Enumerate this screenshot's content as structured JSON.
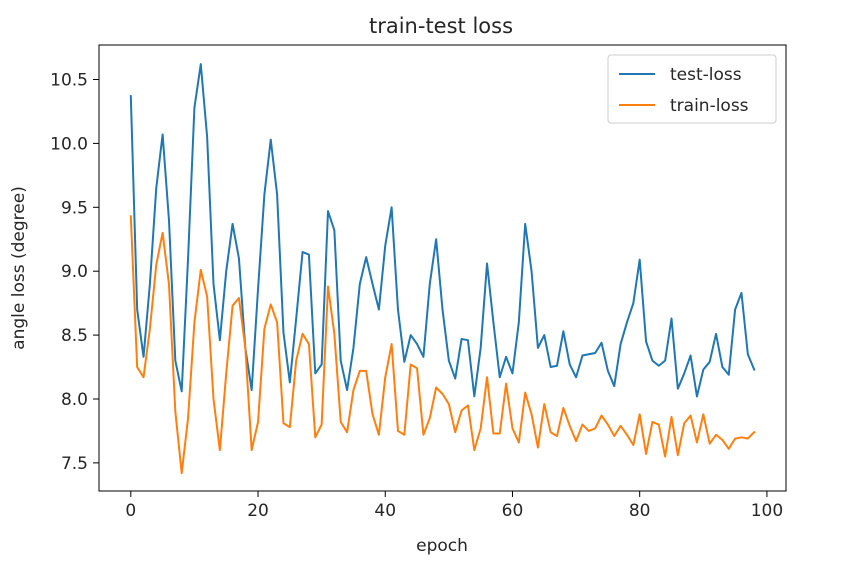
{
  "chart_data": {
    "type": "line",
    "title": "train-test loss",
    "xlabel": "epoch",
    "ylabel": "angle loss (degree)",
    "xlim": [
      -5,
      103
    ],
    "ylim": [
      7.28,
      10.77
    ],
    "xticks": [
      0,
      20,
      40,
      60,
      80,
      100
    ],
    "yticks": [
      7.5,
      8.0,
      8.5,
      9.0,
      9.5,
      10.0,
      10.5
    ],
    "ytick_labels": [
      "7.5",
      "8.0",
      "8.5",
      "9.0",
      "9.5",
      "10.0",
      "10.5"
    ],
    "grid": false,
    "legend_position": "top-right",
    "series": [
      {
        "name": "test-loss",
        "color": "#1f77b4",
        "y": [
          10.37,
          8.7,
          8.33,
          8.9,
          9.65,
          10.07,
          9.4,
          8.3,
          8.06,
          9.1,
          10.28,
          10.62,
          10.05,
          8.9,
          8.46,
          9.0,
          9.37,
          9.1,
          8.4,
          8.07,
          8.86,
          9.6,
          10.03,
          9.6,
          8.52,
          8.13,
          8.63,
          9.15,
          9.13,
          8.2,
          8.27,
          9.47,
          9.32,
          8.3,
          8.07,
          8.4,
          8.9,
          9.11,
          8.9,
          8.7,
          9.2,
          9.5,
          8.7,
          8.29,
          8.5,
          8.43,
          8.33,
          8.9,
          9.25,
          8.7,
          8.3,
          8.16,
          8.47,
          8.46,
          8.02,
          8.4,
          9.06,
          8.6,
          8.17,
          8.33,
          8.2,
          8.6,
          9.37,
          9.0,
          8.4,
          8.5,
          8.25,
          8.26,
          8.53,
          8.27,
          8.17,
          8.34,
          8.35,
          8.36,
          8.44,
          8.22,
          8.1,
          8.43,
          8.6,
          8.75,
          9.09,
          8.45,
          8.3,
          8.26,
          8.3,
          8.63,
          8.08,
          8.2,
          8.34,
          8.02,
          8.23,
          8.29,
          8.51,
          8.25,
          8.19,
          8.7,
          8.83,
          8.35,
          8.23
        ]
      },
      {
        "name": "train-loss",
        "color": "#ff7f0e",
        "y": [
          9.43,
          8.25,
          8.17,
          8.55,
          9.05,
          9.3,
          8.9,
          7.9,
          7.42,
          7.85,
          8.6,
          9.01,
          8.8,
          8.0,
          7.6,
          8.2,
          8.73,
          8.79,
          8.4,
          7.6,
          7.82,
          8.55,
          8.74,
          8.6,
          7.81,
          7.78,
          8.3,
          8.51,
          8.43,
          7.7,
          7.8,
          8.88,
          8.51,
          7.82,
          7.74,
          8.07,
          8.22,
          8.22,
          7.88,
          7.72,
          8.17,
          8.43,
          7.75,
          7.72,
          8.27,
          8.24,
          7.72,
          7.85,
          8.09,
          8.04,
          7.96,
          7.74,
          7.91,
          7.95,
          7.6,
          7.77,
          8.17,
          7.73,
          7.73,
          8.12,
          7.77,
          7.66,
          8.05,
          7.88,
          7.62,
          7.96,
          7.74,
          7.71,
          7.93,
          7.79,
          7.67,
          7.8,
          7.75,
          7.77,
          7.87,
          7.8,
          7.71,
          7.79,
          7.72,
          7.64,
          7.88,
          7.57,
          7.82,
          7.8,
          7.55,
          7.86,
          7.56,
          7.81,
          7.87,
          7.66,
          7.88,
          7.65,
          7.72,
          7.68,
          7.61,
          7.69,
          7.7,
          7.69,
          7.74
        ]
      }
    ]
  }
}
